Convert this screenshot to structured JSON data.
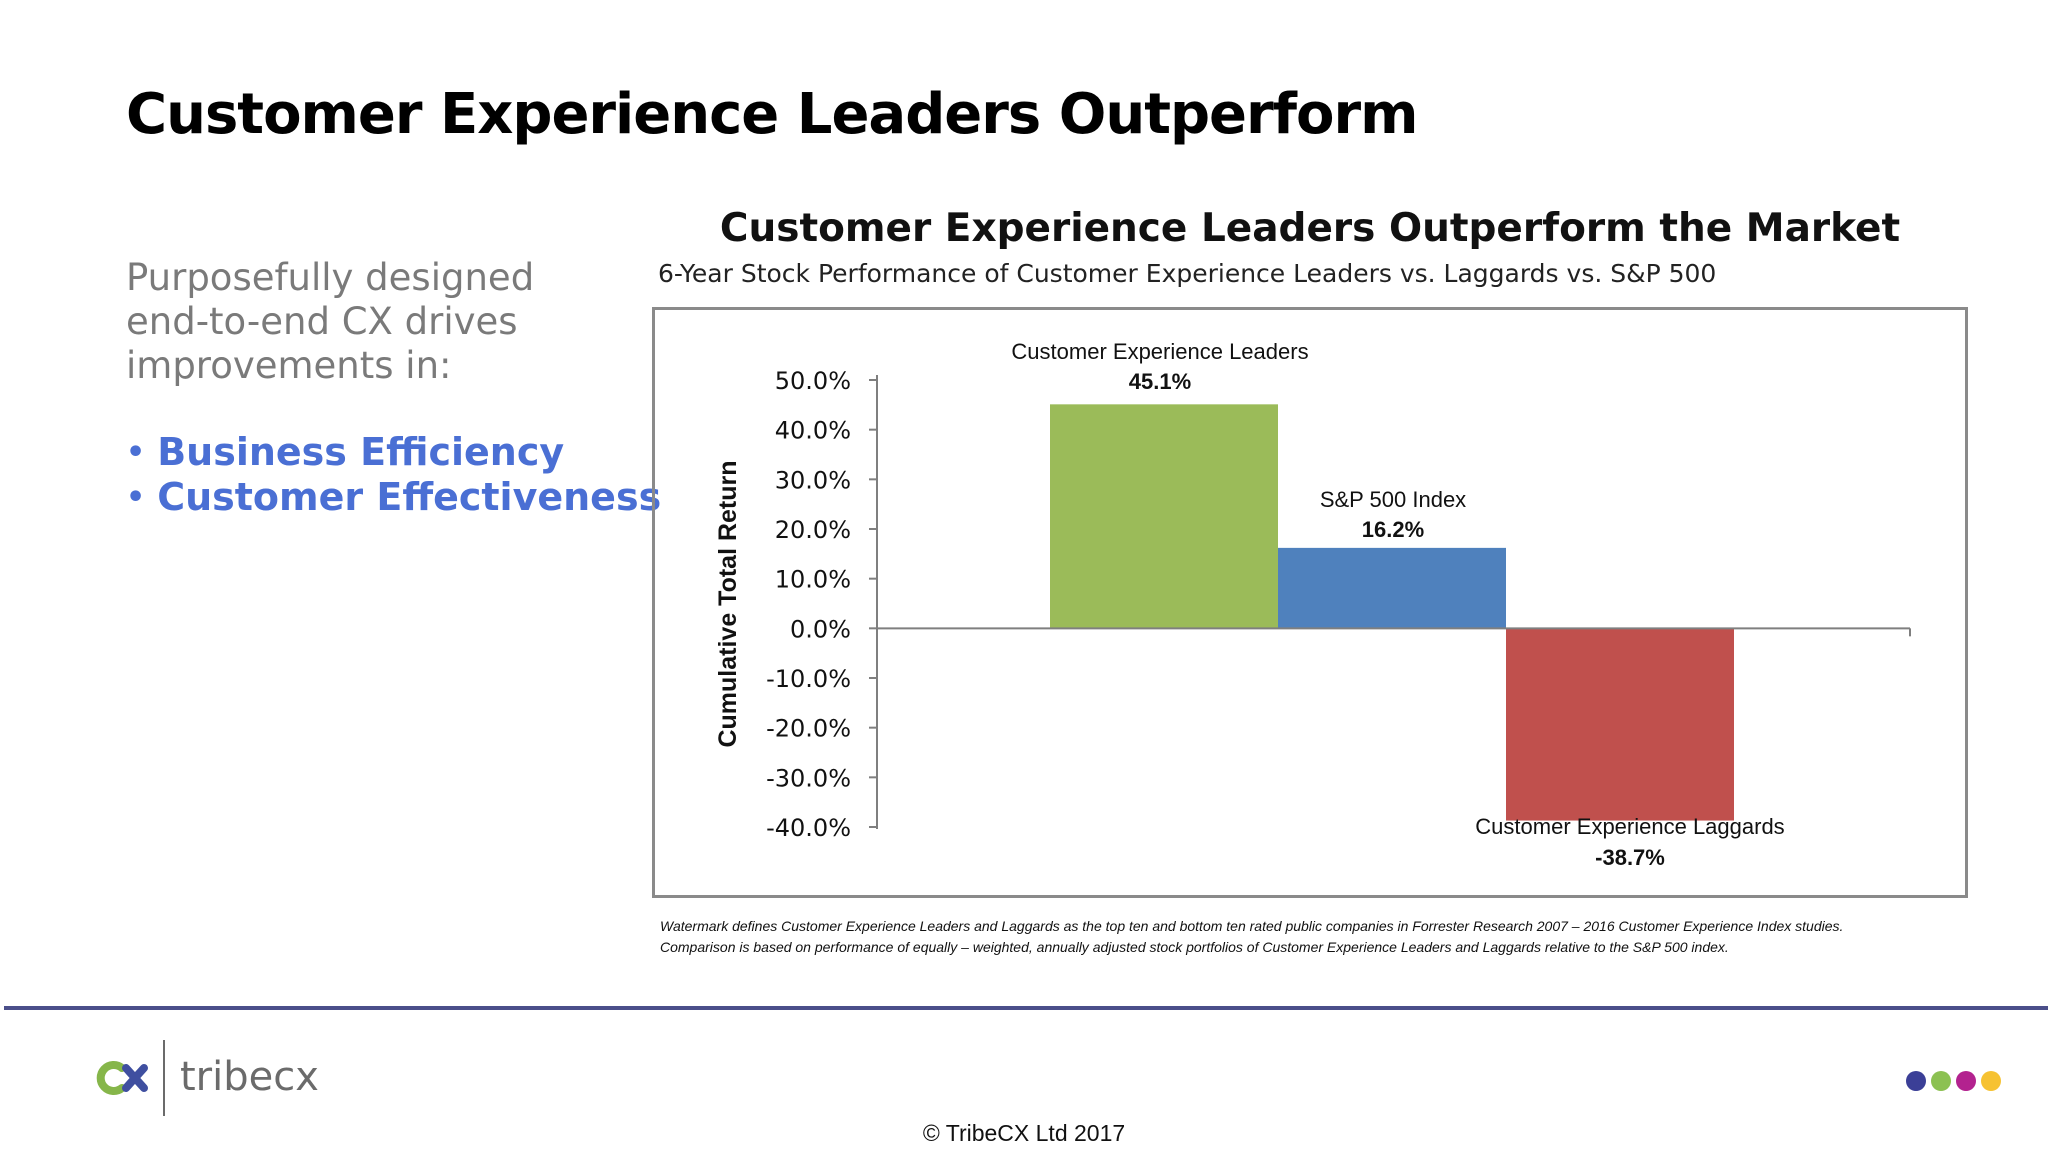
{
  "slide": {
    "title": "Customer Experience Leaders Outperform",
    "intro": "Purposefully designed end-to-end CX drives improvements in:",
    "bullets": [
      "Business Efficiency",
      "Customer Effectiveness"
    ],
    "footnote_line1": "Watermark defines Customer Experience Leaders and Laggards as the top ten and bottom ten rated public companies in Forrester Research 2007 – 2016 Customer Experience Index studies.",
    "footnote_line2": "Comparison is based on performance of equally – weighted, annually adjusted stock portfolios of Customer Experience Leaders and Laggards relative to the S&P 500 index.",
    "copyright": "© TribeCX Ltd 2017",
    "logo_text": "tribecx",
    "accent_color": "#4a6fd4",
    "dot_colors": [
      "#3b3f97",
      "#8cc152",
      "#b3228f",
      "#f6c232"
    ]
  },
  "chart_data": {
    "type": "bar",
    "title": "Customer Experience Leaders Outperform the Market",
    "subtitle": "6-Year Stock Performance of Customer Experience Leaders vs. Laggards vs. S&P 500",
    "ylabel": "Cumulative Total Return",
    "ylim": [
      -40,
      50
    ],
    "ytick_labels": [
      "50.0%",
      "40.0%",
      "30.0%",
      "20.0%",
      "10.0%",
      "0.0%",
      "-10.0%",
      "-20.0%",
      "-30.0%",
      "-40.0%"
    ],
    "ytick_values": [
      50,
      40,
      30,
      20,
      10,
      0,
      -10,
      -20,
      -30,
      -40
    ],
    "categories": [
      "Customer Experience Leaders",
      "S&P 500 Index",
      "Customer Experience Laggards"
    ],
    "values": [
      45.1,
      16.2,
      -38.7
    ],
    "value_labels": [
      "45.1%",
      "16.2%",
      "-38.7%"
    ],
    "colors": [
      "#9bbb59",
      "#4f81bd",
      "#c0504d"
    ],
    "grid": false
  }
}
